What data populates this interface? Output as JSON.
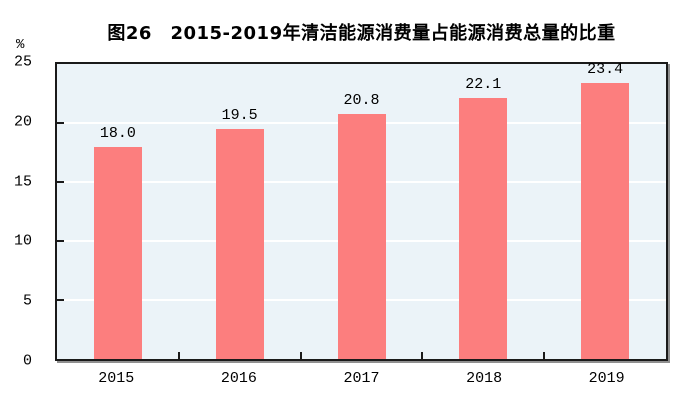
{
  "page": {
    "background": "#FFFFFF"
  },
  "chart_data": {
    "type": "bar",
    "title": "图26　2015-2019年清洁能源消费量占能源消费总量的比重",
    "unit_label": "%",
    "categories": [
      "2015",
      "2016",
      "2017",
      "2018",
      "2019"
    ],
    "values": [
      18.0,
      19.5,
      20.8,
      22.1,
      23.4
    ],
    "value_labels": [
      "18.0",
      "19.5",
      "20.8",
      "22.1",
      "23.4"
    ],
    "y_ticks": [
      0,
      5,
      10,
      15,
      20,
      25
    ],
    "ylim": [
      0,
      25
    ],
    "xlabel": "",
    "ylabel": "%",
    "grid": true,
    "legend": false,
    "colors": {
      "bar": "#FC7E7E",
      "plot_background": "#EBF3F8",
      "gridline": "#FFFFFF",
      "axis_border": "#1A1A1A",
      "shadow": "#8F8F8F",
      "text": "#000000",
      "page_background": "#FFFFFF"
    }
  }
}
